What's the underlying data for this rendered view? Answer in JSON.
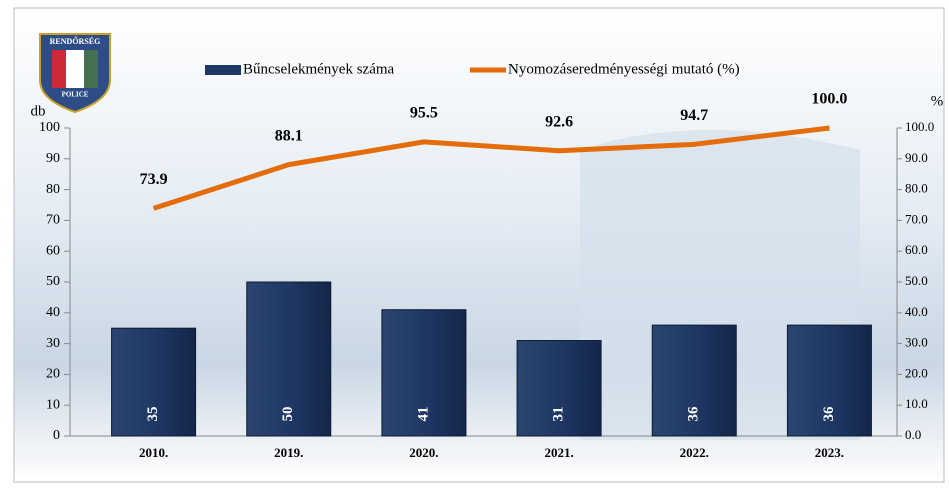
{
  "logo": {
    "top": "RENDŐRSÉG",
    "bottom": "POLICE"
  },
  "chart_data": {
    "type": "bar_line",
    "y_label": "db",
    "y2_label": "%",
    "categories": [
      "2010.",
      "2019.",
      "2020.",
      "2021.",
      "2022.",
      "2023."
    ],
    "series": [
      {
        "name": "Bűncselekmények száma",
        "type": "bar",
        "color": "#1f3864",
        "values": [
          35,
          50,
          41,
          31,
          36,
          36
        ]
      },
      {
        "name": "Nyomozáseredményességi mutató (%)",
        "type": "line",
        "axis": "y2",
        "color": "#e46c0a",
        "values": [
          73.9,
          88.1,
          95.5,
          92.6,
          94.7,
          100.0
        ],
        "value_labels": [
          "73.9",
          "88.1",
          "95.5",
          "92.6",
          "94.7",
          "100.0"
        ]
      }
    ],
    "ylim": [
      0,
      100
    ],
    "yticks": [
      0,
      10,
      20,
      30,
      40,
      50,
      60,
      70,
      80,
      90,
      100
    ],
    "y2lim": [
      0,
      100
    ],
    "y2ticks": [
      {
        "value": 0,
        "label": "0.0"
      },
      {
        "value": 10,
        "label": "10.0"
      },
      {
        "value": 20,
        "label": "20.0"
      },
      {
        "value": 30,
        "label": "30.0"
      },
      {
        "value": 40,
        "label": "40.0"
      },
      {
        "value": 50,
        "label": "50.0"
      },
      {
        "value": 60,
        "label": "60.0"
      },
      {
        "value": 70,
        "label": "70.0"
      },
      {
        "value": 80,
        "label": "80.0"
      },
      {
        "value": 90,
        "label": "90.0"
      },
      {
        "value": 100,
        "label": "100.0"
      }
    ],
    "grid": false,
    "legend": "top"
  }
}
